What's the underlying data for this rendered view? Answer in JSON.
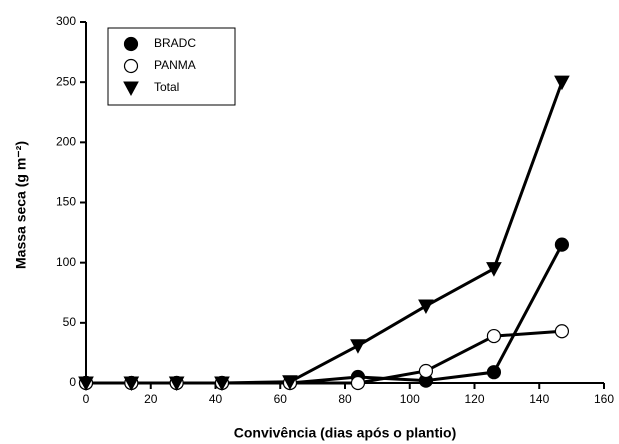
{
  "chart_data": {
    "type": "line",
    "xlabel": "Convivência (dias após o plantio)",
    "ylabel": "Massa seca (g m⁻²)",
    "x": [
      0,
      14,
      28,
      42,
      63,
      84,
      105,
      126,
      147
    ],
    "series": [
      {
        "name": "BRADC",
        "color": "#000000",
        "marker": "filled-circle",
        "values": [
          0,
          0,
          0,
          0,
          0,
          5,
          2,
          9,
          115
        ]
      },
      {
        "name": "PANMA",
        "color": "#000000",
        "marker": "open-circle",
        "values": [
          0,
          0,
          0,
          0,
          0,
          0,
          10,
          39,
          43
        ]
      },
      {
        "name": "Total",
        "color": "#000000",
        "marker": "down-triangle",
        "values": [
          0,
          0,
          0,
          0,
          1,
          31,
          64,
          95,
          250
        ]
      }
    ],
    "xlim": [
      0,
      160
    ],
    "xticks": [
      0,
      20,
      40,
      60,
      80,
      100,
      120,
      140,
      160
    ],
    "ylim": [
      0,
      300
    ],
    "yticks": [
      0,
      50,
      100,
      150,
      200,
      250,
      300
    ],
    "legend": "upper-left"
  }
}
